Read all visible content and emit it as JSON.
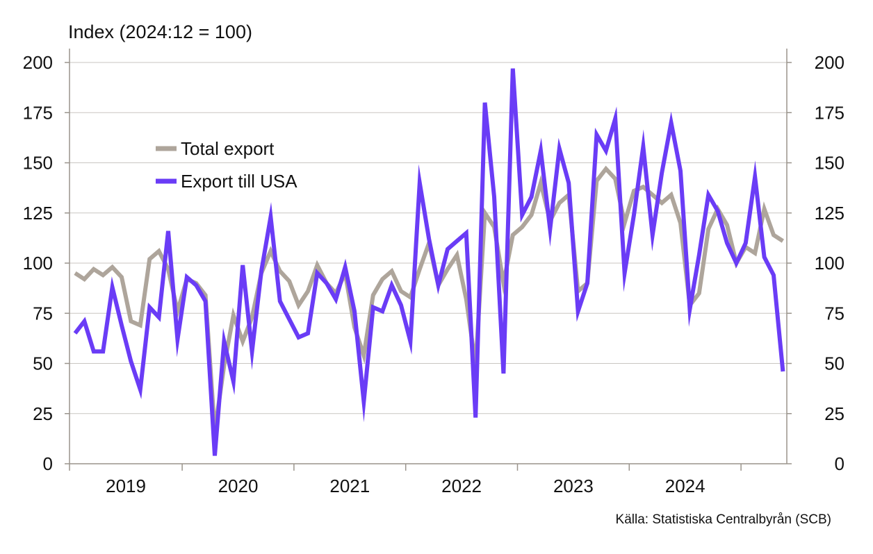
{
  "chart_data": {
    "type": "line",
    "title": "Index (2024:12 = 100)",
    "source": "Källa: Statistiska Centralbyrån (SCB)",
    "yticks": [
      0,
      25,
      50,
      75,
      100,
      125,
      150,
      175,
      200
    ],
    "ylim": [
      0,
      200
    ],
    "year_labels": [
      "2019",
      "2020",
      "2021",
      "2022",
      "2023",
      "2024"
    ],
    "x_start": "2019-01",
    "legend_position": "top-left",
    "grid": true,
    "series": [
      {
        "name": "Total export",
        "color": "#aea59b",
        "values": [
          95,
          92,
          97,
          94,
          98,
          93,
          71,
          69,
          102,
          106,
          97,
          76,
          92,
          90,
          84,
          16,
          49,
          74,
          61,
          73,
          95,
          106,
          96,
          91,
          79,
          86,
          99,
          90,
          85,
          95,
          68,
          54,
          84,
          92,
          96,
          86,
          83,
          97,
          110,
          89,
          97,
          104,
          82,
          49,
          125,
          118,
          90,
          114,
          118,
          124,
          140,
          121,
          130,
          134,
          86,
          90,
          141,
          147,
          142,
          120,
          136,
          138,
          134,
          130,
          134,
          120,
          79,
          85,
          117,
          127,
          119,
          100,
          108,
          105,
          127,
          114,
          111
        ]
      },
      {
        "name": "Export till USA",
        "color": "#6a3cf6",
        "values": [
          65,
          71,
          56,
          56,
          88,
          69,
          51,
          37,
          78,
          73,
          116,
          62,
          93,
          89,
          81,
          4,
          61,
          41,
          99,
          56,
          96,
          123,
          81,
          72,
          63,
          65,
          95,
          90,
          82,
          98,
          76,
          31,
          78,
          76,
          89,
          79,
          61,
          140,
          112,
          89,
          107,
          111,
          115,
          23,
          180,
          133,
          45,
          197,
          124,
          133,
          156,
          117,
          157,
          140,
          76,
          90,
          164,
          156,
          172,
          95,
          124,
          158,
          114,
          145,
          170,
          146,
          77,
          104,
          134,
          126,
          110,
          100,
          110,
          143,
          103,
          94,
          46
        ]
      }
    ]
  }
}
